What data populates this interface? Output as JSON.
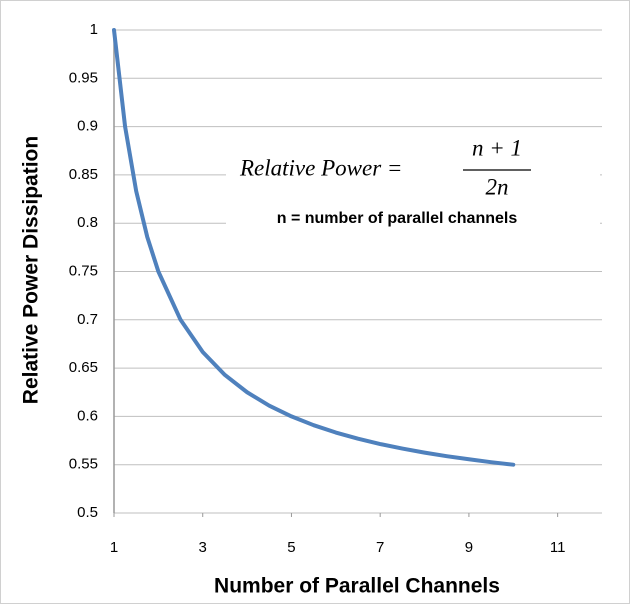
{
  "chart_data": {
    "type": "line",
    "x_label": "Number of Parallel Channels",
    "y_label": "Relative Power Dissipation",
    "annotations": {
      "equation_lhs": "Relative Power =",
      "numerator": "n + 1",
      "denominator": "2n",
      "note": "n = number of parallel channels"
    },
    "x": [
      1,
      1.25,
      1.5,
      1.75,
      2,
      2.5,
      3,
      3.5,
      4,
      4.5,
      5,
      5.5,
      6,
      6.5,
      7,
      7.5,
      8,
      8.5,
      9,
      9.5,
      10
    ],
    "series": [
      {
        "name": "Relative Power",
        "color": "#4f81bd",
        "values": [
          1,
          0.9,
          0.8333,
          0.7857,
          0.75,
          0.7,
          0.6667,
          0.6429,
          0.625,
          0.6111,
          0.6,
          0.5909,
          0.5833,
          0.5769,
          0.5714,
          0.5667,
          0.5625,
          0.5588,
          0.5556,
          0.5526,
          0.55
        ]
      }
    ],
    "xlim": [
      1,
      12
    ],
    "xticks": [
      1,
      3,
      5,
      7,
      9,
      11
    ],
    "ylim": [
      0.5,
      1
    ],
    "yticks": [
      0.5,
      0.55,
      0.6,
      0.65,
      0.7,
      0.75,
      0.8,
      0.85,
      0.9,
      0.95,
      1
    ],
    "grid": true
  }
}
